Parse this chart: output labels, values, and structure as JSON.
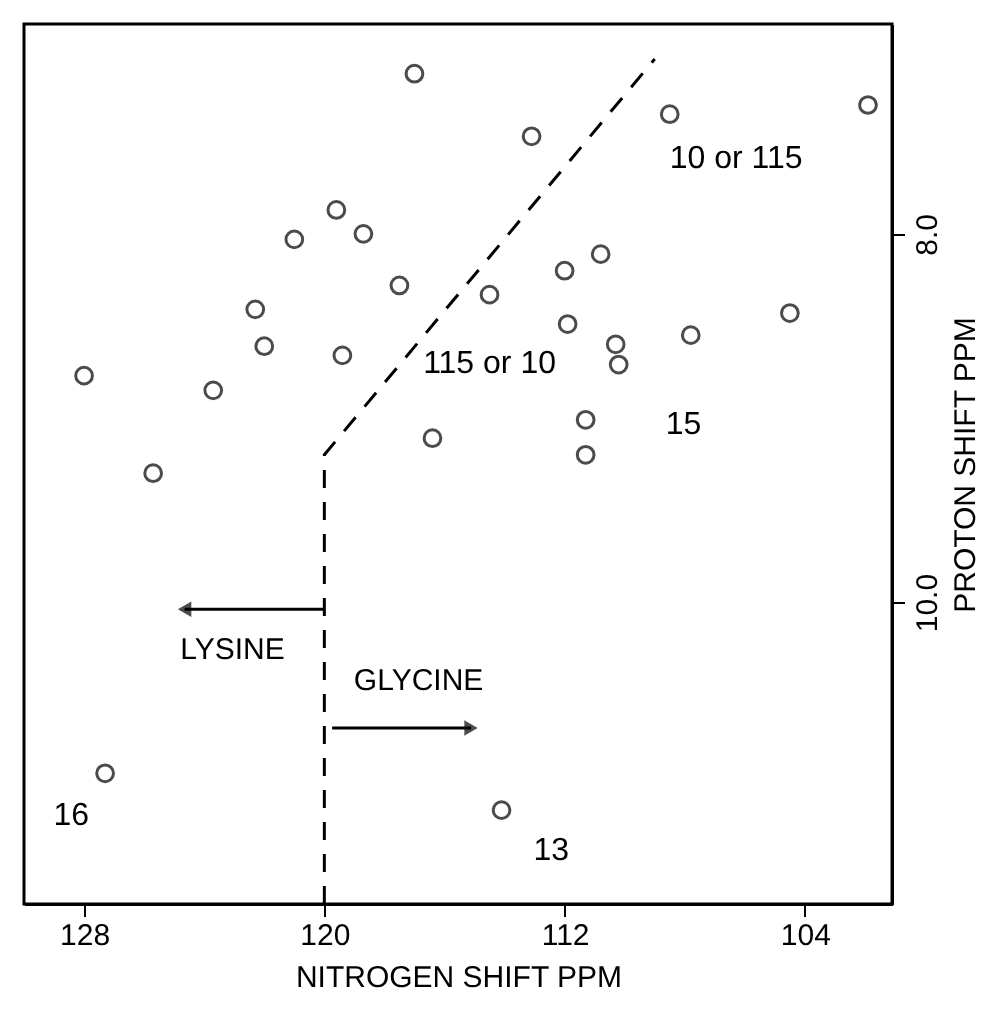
{
  "chart_data": {
    "type": "scatter",
    "xlabel": "NITROGEN SHIFT PPM",
    "ylabel": "PROTON SHIFT PPM",
    "xlim": [
      130.0,
      101.1
    ],
    "ylim": [
      11.64,
      6.86
    ],
    "xticks": [
      128,
      120,
      112,
      104
    ],
    "yticks": [
      {
        "value": 8,
        "label": "8.0"
      },
      {
        "value": 10,
        "label": "10.0"
      }
    ],
    "grid": false,
    "series": [
      {
        "marker": "circle",
        "color": "#000000",
        "x": [
          117.0,
          119.6,
          118.7,
          121.0,
          117.5,
          122.3,
          122.0,
          119.4,
          128.0,
          123.7,
          116.4,
          125.7,
          114.5,
          108.5,
          113.1,
          101.9,
          112.0,
          110.8,
          111.9,
          110.3,
          110.2,
          107.8,
          104.5,
          111.3,
          111.3,
          127.3,
          114.1
        ],
        "values": [
          7.13,
          7.87,
          8.0,
          8.03,
          8.28,
          8.41,
          8.61,
          8.66,
          8.77,
          8.85,
          9.11,
          9.3,
          8.33,
          7.35,
          7.47,
          7.3,
          8.2,
          8.11,
          8.49,
          8.6,
          8.71,
          8.55,
          8.43,
          9.01,
          9.2,
          10.93,
          11.13
        ]
      },
      {
        "type": "line",
        "color": "#000000",
        "line_style": "dashed",
        "x": [
          120.0,
          120.0,
          109.0
        ],
        "values": [
          11.64,
          9.2,
          7.05
        ]
      }
    ],
    "annotations": [
      {
        "text": "10 or 115",
        "x": 108.5,
        "y": 7.35
      },
      {
        "text": "115 or 10",
        "x": 114.5,
        "y": 8.33
      },
      {
        "text": "15",
        "x": 111.3,
        "y": 9.01
      },
      {
        "text": "16",
        "x": 127.3,
        "y": 10.93
      },
      {
        "text": "13",
        "x": 114.1,
        "y": 11.13
      },
      "LYSINE",
      "GLYCINE"
    ]
  }
}
